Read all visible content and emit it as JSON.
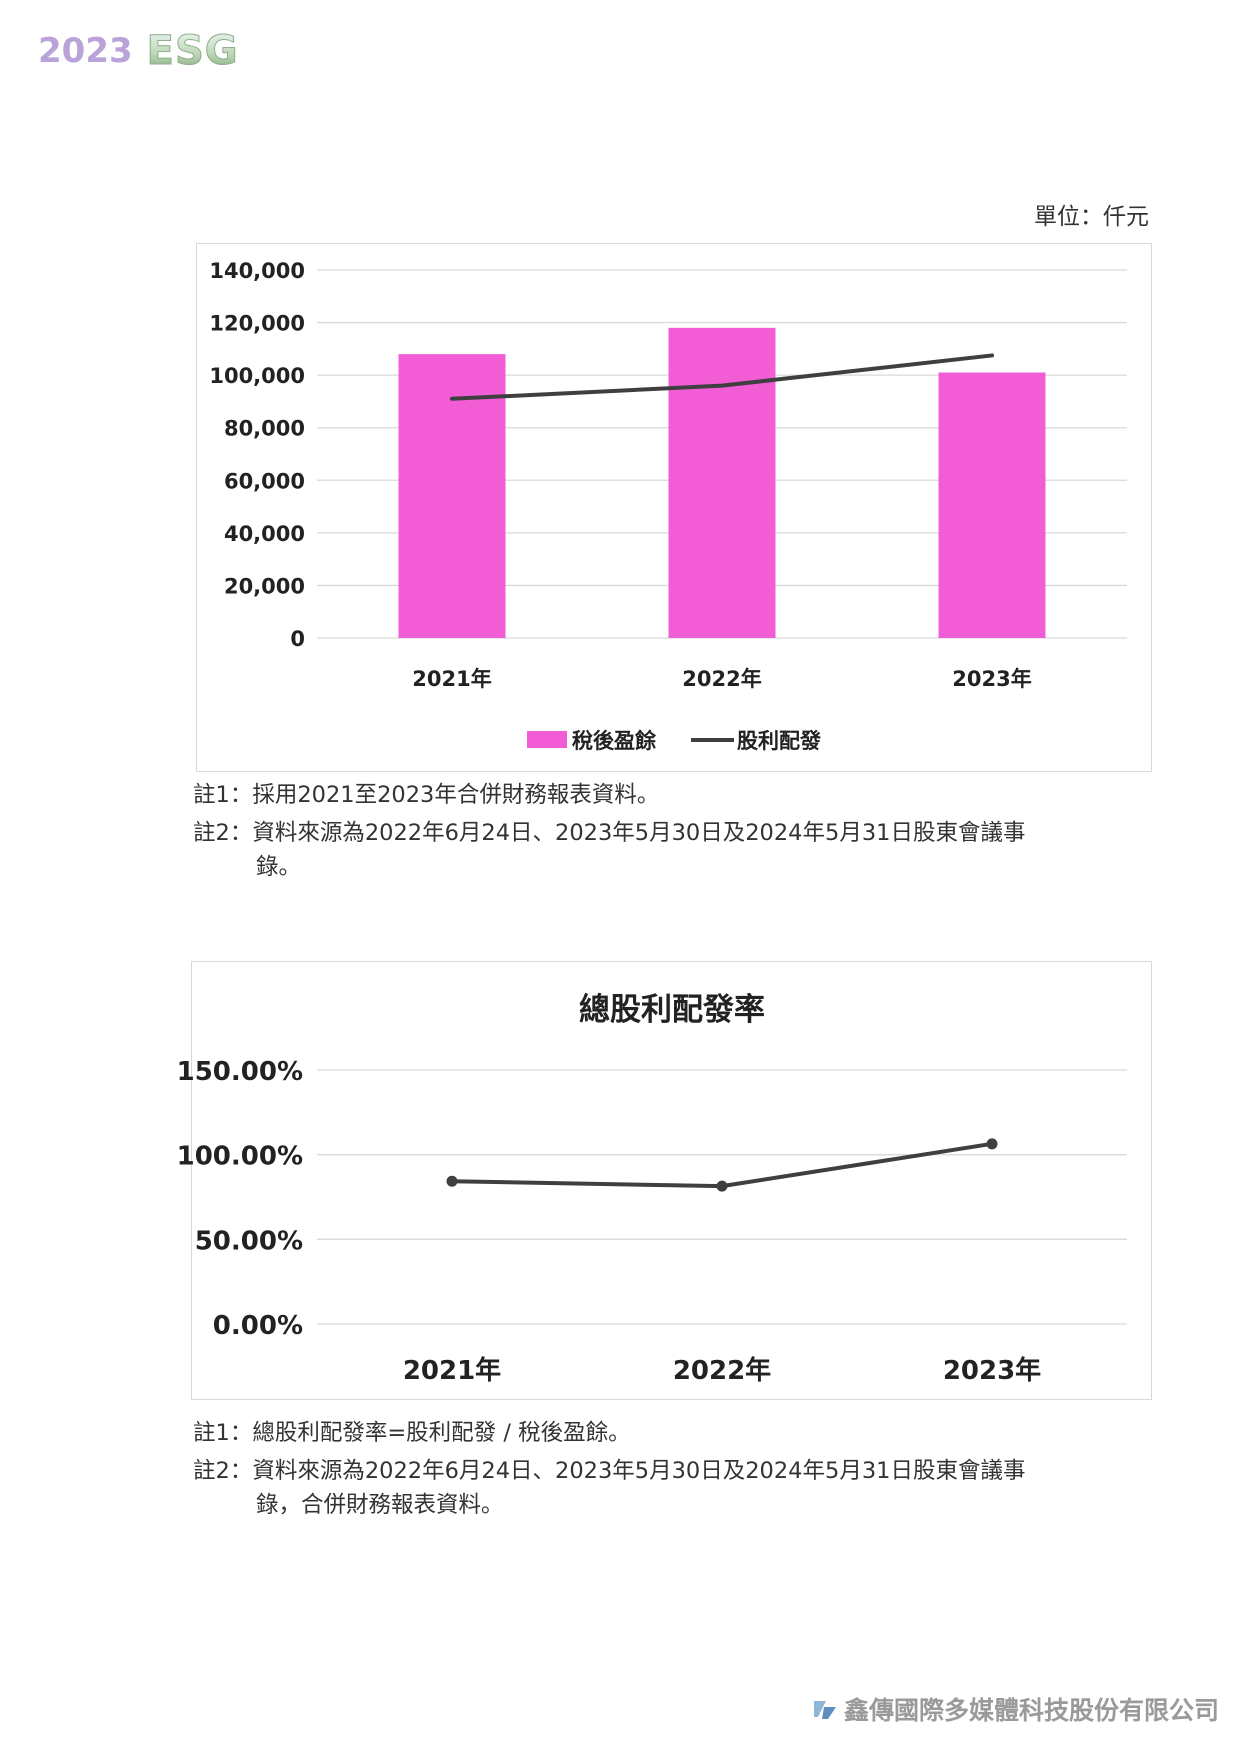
{
  "header": {
    "year": "2023",
    "brand": "ESG"
  },
  "unit_label": "單位：仟元",
  "chart_data": [
    {
      "type": "bar",
      "title": "",
      "categories": [
        "2021年",
        "2022年",
        "2023年"
      ],
      "series": [
        {
          "name": "稅後盈餘",
          "type": "bar",
          "color": "#f25cd4",
          "values": [
            108000,
            118000,
            101000
          ]
        },
        {
          "name": "股利配發",
          "type": "line",
          "color": "#3f3f3f",
          "values": [
            91000,
            96000,
            107500
          ]
        }
      ],
      "y_ticks": [
        "140,000",
        "120,000",
        "100,000",
        "80,000",
        "60,000",
        "40,000",
        "20,000",
        "0"
      ],
      "ylim": [
        0,
        140000
      ],
      "grid": true,
      "legend": "bottom"
    },
    {
      "type": "line",
      "title": "總股利配發率",
      "categories": [
        "2021年",
        "2022年",
        "2023年"
      ],
      "series": [
        {
          "name": "",
          "color": "#3f3f3f",
          "values": [
            84.3,
            81.4,
            106.4
          ]
        }
      ],
      "y_ticks": [
        "150.00%",
        "100.00%",
        "50.00%",
        "0.00%"
      ],
      "ylim": [
        0,
        150
      ],
      "grid": true,
      "legend": "none"
    }
  ],
  "notes_1": [
    {
      "label": "註1：",
      "text": "採用2021至2023年合併財務報表資料。"
    },
    {
      "label": "註2：",
      "text": "資料來源為2022年6月24日、2023年5月30日及2024年5月31日股東會議事",
      "cont": "錄。"
    }
  ],
  "notes_2": [
    {
      "label": "註1：",
      "text": "總股利配發率=股利配發 / 稅後盈餘。"
    },
    {
      "label": "註2：",
      "text": "資料來源為2022年6月24日、2023年5月30日及2024年5月31日股東會議事",
      "cont": "錄，合併財務報表資料。"
    }
  ],
  "footer": {
    "company": "鑫傳國際多媒體科技股份有限公司"
  }
}
